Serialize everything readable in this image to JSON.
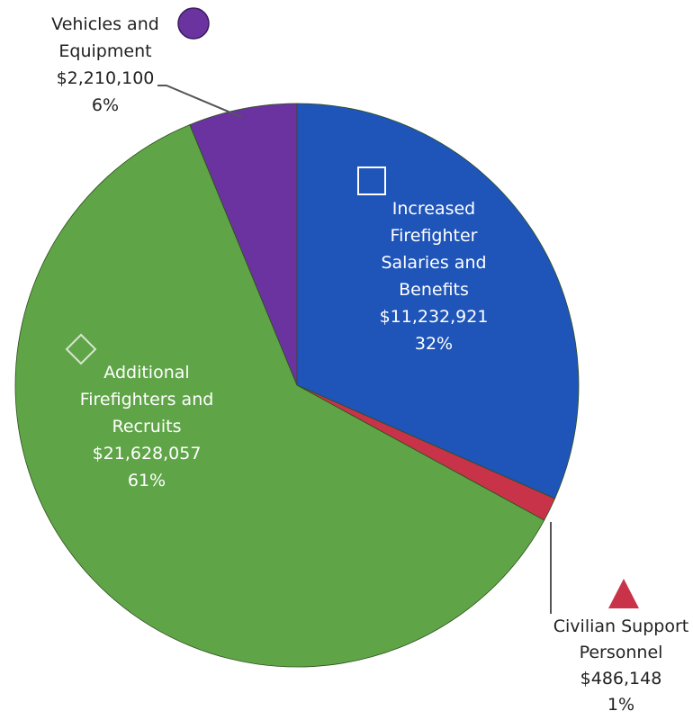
{
  "chart_data": {
    "type": "pie",
    "title": "",
    "start_angle_deg": 0,
    "direction": "clockwise",
    "slices": [
      {
        "name": "Increased Firefighter Salaries and Benefits",
        "value": 11232921,
        "value_label": "$11,232,921",
        "percent_label": "32%",
        "color": "#1f54b8",
        "marker": "square",
        "label_lines": [
          "Increased",
          "Firefighter",
          "Salaries and",
          "Benefits",
          "$11,232,921",
          "32%"
        ]
      },
      {
        "name": "Civilian Support Personnel",
        "value": 486148,
        "value_label": "$486,148",
        "percent_label": "1%",
        "color": "#c8334a",
        "marker": "triangle",
        "label_lines": [
          "Civilian Support",
          "Personnel",
          "$486,148",
          "1%"
        ]
      },
      {
        "name": "Additional Firefighters and Recruits",
        "value": 21628057,
        "value_label": "$21,628,057",
        "percent_label": "61%",
        "color": "#5fa548",
        "marker": "diamond",
        "label_lines": [
          "Additional",
          "Firefighters and",
          "Recruits",
          "$21,628,057",
          "61%"
        ]
      },
      {
        "name": "Vehicles and Equipment",
        "value": 2210100,
        "value_label": "$2,210,100",
        "percent_label": "6%",
        "color": "#6a33a0",
        "marker": "circle",
        "label_lines": [
          "Vehicles and",
          "Equipment",
          "$2,210,100",
          "6%"
        ]
      }
    ]
  }
}
